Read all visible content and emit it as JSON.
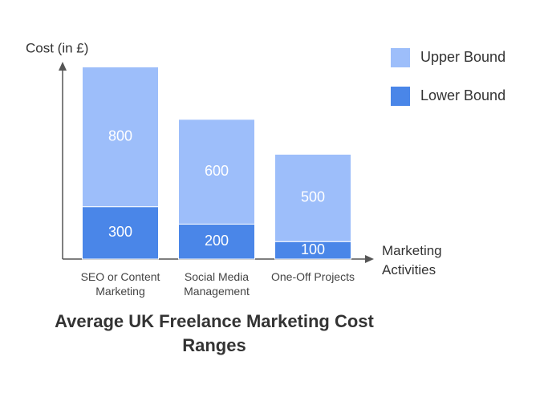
{
  "chart_data": {
    "type": "stacked-bar",
    "title": "Average UK Freelance Marketing Cost Ranges",
    "y_label": "Cost (in £)",
    "x_label": "Marketing Activities",
    "categories": [
      "SEO or Content Marketing",
      "Social Media Management",
      "One-Off Projects"
    ],
    "series": [
      {
        "name": "Lower Bound",
        "color": "#4a86e8",
        "values": [
          300,
          200,
          100
        ]
      },
      {
        "name": "Upper Bound",
        "color": "#9dbefa",
        "values": [
          800,
          600,
          500
        ]
      }
    ],
    "ylim": [
      0,
      1125
    ],
    "legend": "top-right"
  }
}
